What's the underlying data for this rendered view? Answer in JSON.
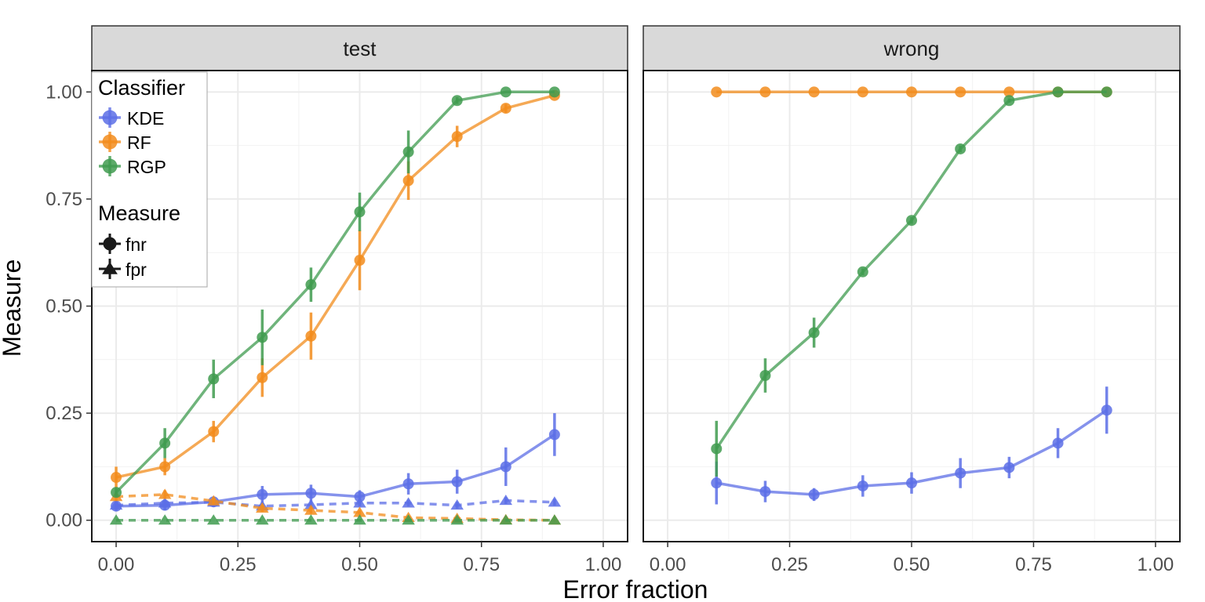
{
  "chart_data": {
    "type": "line",
    "xlabel": "Error fraction",
    "ylabel": "Measure",
    "xlim": [
      -0.05,
      1.05
    ],
    "ylim": [
      -0.05,
      1.05
    ],
    "x_ticks": [
      "0.00",
      "0.25",
      "0.50",
      "0.75",
      "1.00"
    ],
    "y_ticks": [
      "0.00",
      "0.25",
      "0.50",
      "0.75",
      "1.00"
    ],
    "grid": true,
    "legend": {
      "placement": "top-left",
      "classifier_title": "Classifier",
      "classifiers": [
        {
          "label": "KDE",
          "color": "#5c6ee6"
        },
        {
          "label": "RF",
          "color": "#f28c1c"
        },
        {
          "label": "RGP",
          "color": "#3f9b4f"
        }
      ],
      "measure_title": "Measure",
      "measures": [
        {
          "label": "fnr",
          "shape": "circle",
          "linetype": "solid"
        },
        {
          "label": "fpr",
          "shape": "triangle",
          "linetype": "dashed"
        }
      ]
    },
    "panels": [
      {
        "title": "test",
        "series": [
          {
            "classifier": "KDE",
            "measure": "fnr",
            "x": [
              0,
              0.1,
              0.2,
              0.3,
              0.4,
              0.5,
              0.6,
              0.7,
              0.8,
              0.9
            ],
            "y": [
              0.033,
              0.035,
              0.043,
              0.06,
              0.063,
              0.055,
              0.085,
              0.09,
              0.125,
              0.2
            ],
            "err": [
              0.012,
              0.012,
              0.012,
              0.02,
              0.02,
              0.015,
              0.025,
              0.028,
              0.045,
              0.05
            ]
          },
          {
            "classifier": "KDE",
            "measure": "fpr",
            "x": [
              0,
              0.1,
              0.2,
              0.3,
              0.4,
              0.5,
              0.6,
              0.7,
              0.8,
              0.9
            ],
            "y": [
              0.035,
              0.04,
              0.042,
              0.033,
              0.036,
              0.04,
              0.04,
              0.035,
              0.046,
              0.042
            ],
            "err": [
              0.008,
              0.008,
              0.008,
              0.008,
              0.008,
              0.008,
              0.008,
              0.008,
              0.008,
              0.008
            ]
          },
          {
            "classifier": "RF",
            "measure": "fnr",
            "x": [
              0,
              0.1,
              0.2,
              0.3,
              0.4,
              0.5,
              0.6,
              0.7,
              0.8,
              0.9
            ],
            "y": [
              0.1,
              0.125,
              0.207,
              0.333,
              0.43,
              0.607,
              0.793,
              0.896,
              0.962,
              0.992
            ],
            "err": [
              0.025,
              0.02,
              0.025,
              0.045,
              0.055,
              0.07,
              0.045,
              0.025,
              0.01,
              0.005
            ]
          },
          {
            "classifier": "RF",
            "measure": "fpr",
            "x": [
              0,
              0.1,
              0.2,
              0.3,
              0.4,
              0.5,
              0.6,
              0.7,
              0.8,
              0.9
            ],
            "y": [
              0.055,
              0.06,
              0.045,
              0.028,
              0.023,
              0.018,
              0.006,
              0.004,
              0.001,
              0.0
            ],
            "err": [
              0.01,
              0.01,
              0.008,
              0.008,
              0.008,
              0.006,
              0.004,
              0.003,
              0.002,
              0.001
            ]
          },
          {
            "classifier": "RGP",
            "measure": "fnr",
            "x": [
              0,
              0.1,
              0.2,
              0.3,
              0.4,
              0.5,
              0.6,
              0.7,
              0.8,
              0.9
            ],
            "y": [
              0.065,
              0.18,
              0.33,
              0.427,
              0.55,
              0.72,
              0.86,
              0.98,
              1.0,
              1.0
            ],
            "err": [
              0.01,
              0.035,
              0.045,
              0.065,
              0.04,
              0.045,
              0.05,
              0.008,
              0.0,
              0.0
            ]
          },
          {
            "classifier": "RGP",
            "measure": "fpr",
            "x": [
              0,
              0.1,
              0.2,
              0.3,
              0.4,
              0.5,
              0.6,
              0.7,
              0.8,
              0.9
            ],
            "y": [
              0.0,
              0.0,
              0.0,
              0.0,
              0.0,
              0.0,
              0.0,
              0.0,
              0.0,
              0.0
            ],
            "err": [
              0,
              0,
              0,
              0,
              0,
              0,
              0,
              0,
              0,
              0
            ]
          }
        ]
      },
      {
        "title": "wrong",
        "series": [
          {
            "classifier": "KDE",
            "measure": "fnr",
            "x": [
              0.1,
              0.2,
              0.3,
              0.4,
              0.5,
              0.6,
              0.7,
              0.8,
              0.9
            ],
            "y": [
              0.087,
              0.067,
              0.06,
              0.08,
              0.087,
              0.11,
              0.123,
              0.18,
              0.257
            ],
            "err": [
              0.05,
              0.025,
              0.015,
              0.025,
              0.025,
              0.035,
              0.025,
              0.035,
              0.055
            ]
          },
          {
            "classifier": "RF",
            "measure": "fnr",
            "x": [
              0.1,
              0.2,
              0.3,
              0.4,
              0.5,
              0.6,
              0.7,
              0.8,
              0.9
            ],
            "y": [
              1.0,
              1.0,
              1.0,
              1.0,
              1.0,
              1.0,
              1.0,
              1.0,
              1.0
            ],
            "err": [
              0,
              0,
              0,
              0,
              0,
              0,
              0,
              0,
              0
            ]
          },
          {
            "classifier": "RGP",
            "measure": "fnr",
            "x": [
              0.1,
              0.2,
              0.3,
              0.4,
              0.5,
              0.6,
              0.7,
              0.8,
              0.9
            ],
            "y": [
              0.167,
              0.338,
              0.438,
              0.58,
              0.7,
              0.867,
              0.98,
              1.0,
              1.0
            ],
            "err": [
              0.065,
              0.04,
              0.035,
              0.008,
              0.008,
              0.008,
              0.005,
              0.0,
              0.0
            ]
          }
        ]
      }
    ]
  }
}
